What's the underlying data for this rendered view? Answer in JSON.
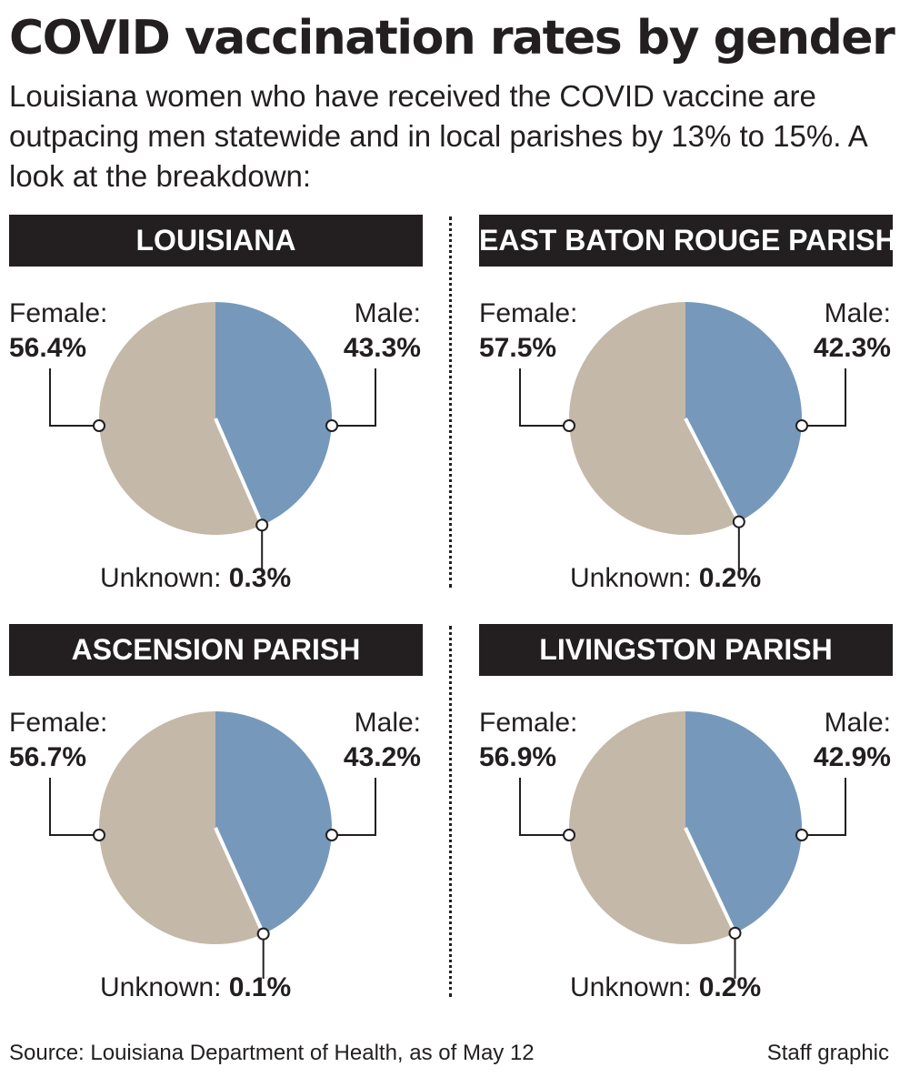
{
  "title": "COVID vaccination rates by gender",
  "subtitle": "Louisiana women who have received the COVID vaccine are outpacing men statewide and in local parishes by 13% to 15%. A look at the breakdown:",
  "labels": {
    "female": "Female:",
    "male": "Male:",
    "unknown": "Unknown:"
  },
  "colors": {
    "female": "#c4b8a8",
    "male": "#7698bb",
    "header_bg": "#231f20",
    "text": "#231f20"
  },
  "chart_data": [
    {
      "type": "pie",
      "title": "LOUISIANA",
      "categories": [
        "Male",
        "Unknown",
        "Female"
      ],
      "values": [
        43.3,
        0.3,
        56.4
      ],
      "value_labels": {
        "female": "56.4%",
        "male": "43.3%",
        "unknown": "0.3%"
      }
    },
    {
      "type": "pie",
      "title": "EAST BATON ROUGE PARISH",
      "categories": [
        "Male",
        "Unknown",
        "Female"
      ],
      "values": [
        42.3,
        0.2,
        57.5
      ],
      "value_labels": {
        "female": "57.5%",
        "male": "42.3%",
        "unknown": "0.2%"
      }
    },
    {
      "type": "pie",
      "title": "ASCENSION PARISH",
      "categories": [
        "Male",
        "Unknown",
        "Female"
      ],
      "values": [
        43.2,
        0.1,
        56.7
      ],
      "value_labels": {
        "female": "56.7%",
        "male": "43.2%",
        "unknown": "0.1%"
      }
    },
    {
      "type": "pie",
      "title": "LIVINGSTON PARISH",
      "categories": [
        "Male",
        "Unknown",
        "Female"
      ],
      "values": [
        42.9,
        0.2,
        56.9
      ],
      "value_labels": {
        "female": "56.9%",
        "male": "42.9%",
        "unknown": "0.2%"
      }
    }
  ],
  "footer": {
    "source": "Source: Louisiana Department of Health, as of May 12",
    "credit": "Staff graphic"
  }
}
